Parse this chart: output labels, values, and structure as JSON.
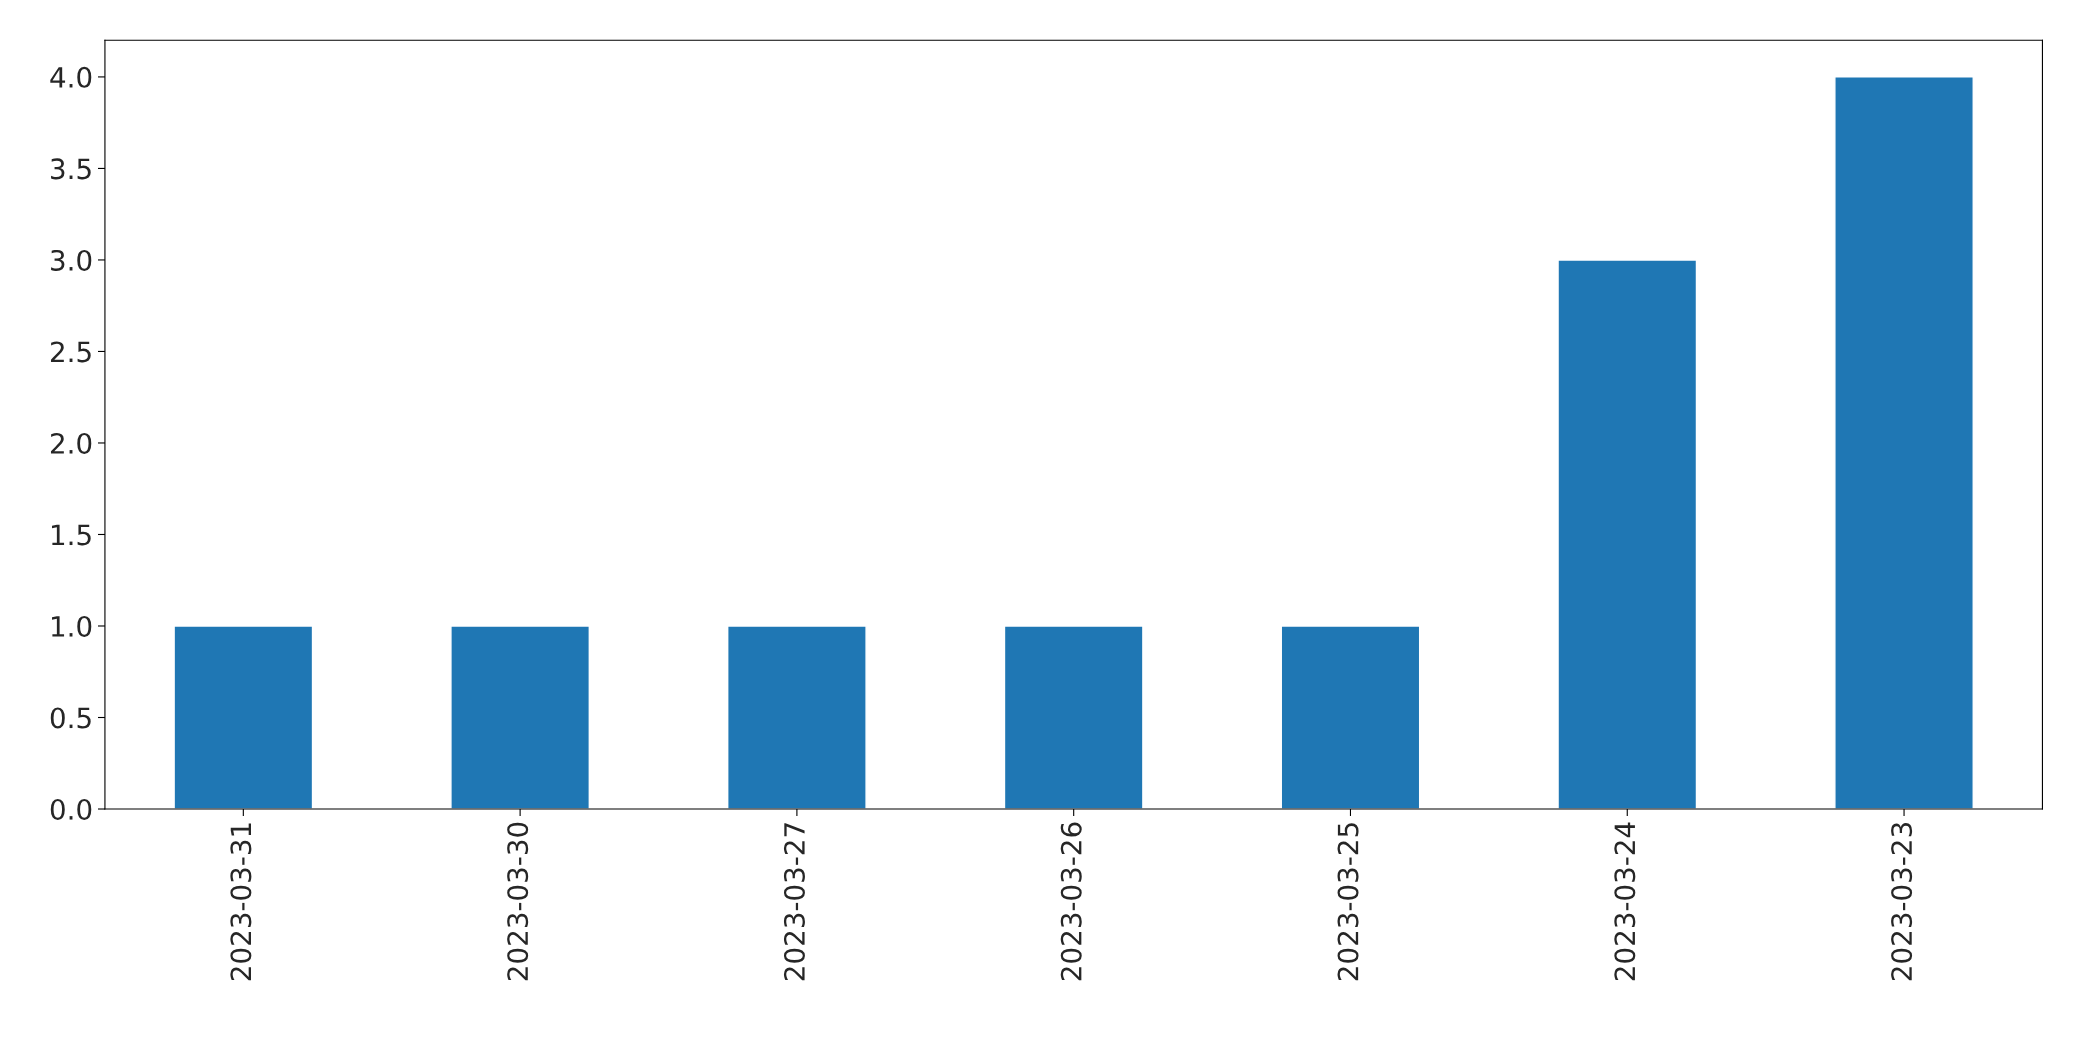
{
  "chart_data": {
    "type": "bar",
    "categories": [
      "2023-03-31",
      "2023-03-30",
      "2023-03-27",
      "2023-03-26",
      "2023-03-25",
      "2023-03-24",
      "2023-03-23"
    ],
    "values": [
      1,
      1,
      1,
      1,
      1,
      3,
      4
    ],
    "color": "#1f77b4",
    "ylim": [
      0,
      4.2
    ],
    "yticks": [
      {
        "value": 0,
        "label": "0.0"
      },
      {
        "value": 0.5,
        "label": "0.5"
      },
      {
        "value": 1,
        "label": "1.0"
      },
      {
        "value": 1.5,
        "label": "1.5"
      },
      {
        "value": 2,
        "label": "2.0"
      },
      {
        "value": 2.5,
        "label": "2.5"
      },
      {
        "value": 3,
        "label": "3.0"
      },
      {
        "value": 3.5,
        "label": "3.5"
      },
      {
        "value": 4,
        "label": "4.0"
      }
    ],
    "grid": false,
    "legend": false
  }
}
